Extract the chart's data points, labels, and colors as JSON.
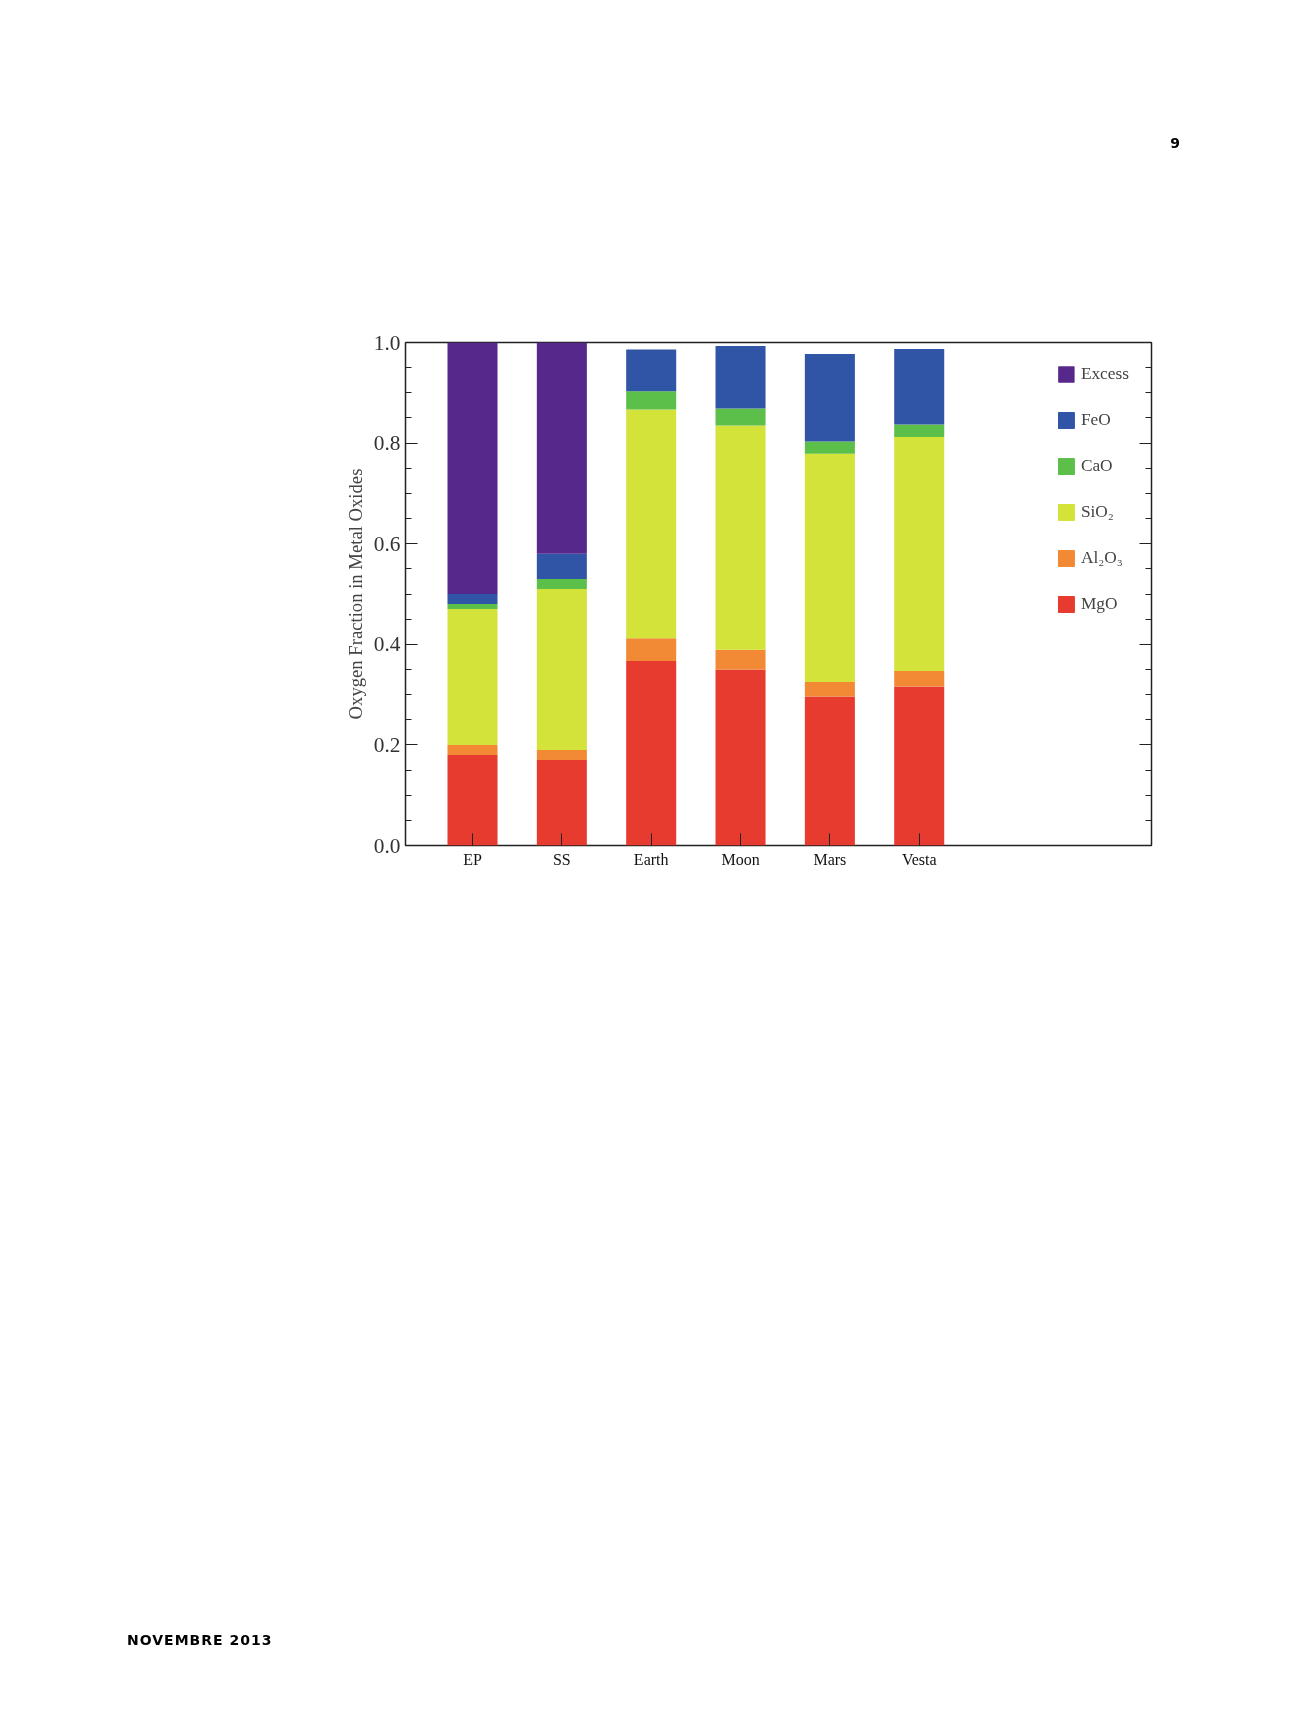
{
  "chart_data": {
    "type": "bar",
    "stacked": true,
    "ylabel": "Oxygen Fraction in Metal Oxides",
    "categories": [
      "EP",
      "SS",
      "Earth",
      "Moon",
      "Mars",
      "Vesta"
    ],
    "series": [
      {
        "name": "MgO",
        "color": "#e63b2e",
        "values": [
          0.18,
          0.17,
          0.367,
          0.35,
          0.296,
          0.316
        ]
      },
      {
        "name": "Al₂O₃",
        "color": "#f28a35",
        "values": [
          0.02,
          0.02,
          0.045,
          0.039,
          0.029,
          0.031
        ]
      },
      {
        "name": "SiO₂",
        "color": "#d4e33a",
        "values": [
          0.27,
          0.32,
          0.455,
          0.446,
          0.454,
          0.465
        ]
      },
      {
        "name": "CaO",
        "color": "#5bbf4a",
        "values": [
          0.01,
          0.02,
          0.036,
          0.034,
          0.024,
          0.025
        ]
      },
      {
        "name": "FeO",
        "color": "#3155a6",
        "values": [
          0.02,
          0.05,
          0.083,
          0.124,
          0.174,
          0.15
        ]
      },
      {
        "name": "Excess",
        "color": "#56288c",
        "values": [
          0.5,
          0.42,
          null,
          null,
          null,
          null
        ]
      }
    ],
    "ylim": [
      0,
      1.0
    ],
    "yticks": [
      {
        "value": 0,
        "label": "0.0"
      },
      {
        "value": 0.2,
        "label": "0.2"
      },
      {
        "value": 0.4,
        "label": "0.4"
      },
      {
        "value": 0.6,
        "label": "0.6"
      },
      {
        "value": 0.8,
        "label": "0.8"
      },
      {
        "value": 1.0,
        "label": "1.0"
      }
    ],
    "grid": false,
    "legend": "top right",
    "annotations": [
      "9",
      "NOVEMBRE 2013"
    ]
  }
}
